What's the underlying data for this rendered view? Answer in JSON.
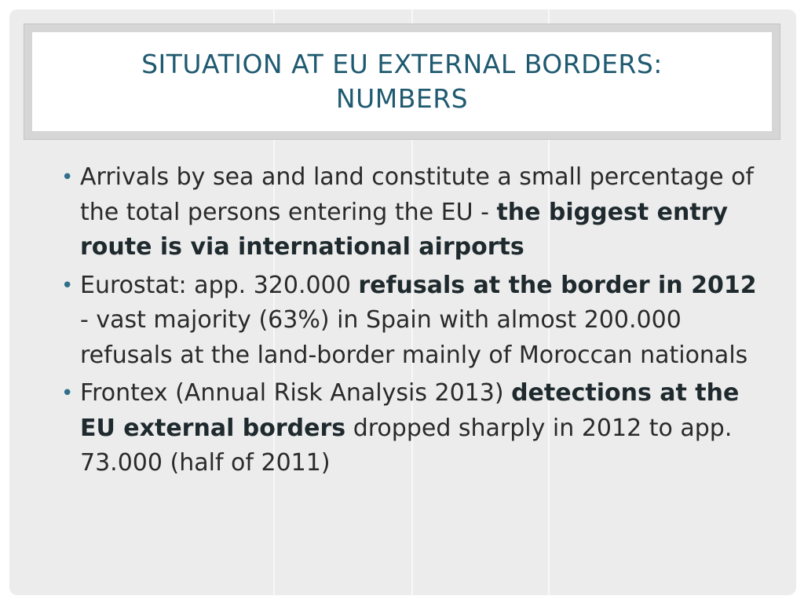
{
  "slide": {
    "title": "SITUATION AT EU EXTERNAL BORDERS:\nNUMBERS",
    "bullets": [
      {
        "parts": [
          {
            "text": "Arrivals by sea and land constitute a small percentage of the total persons entering the EU - ",
            "bold": false
          },
          {
            "text": "the biggest entry route is via international airports",
            "bold": true
          }
        ]
      },
      {
        "parts": [
          {
            "text": "Eurostat: app. 320.000 ",
            "bold": false
          },
          {
            "text": "refusals at the border in 2012",
            "bold": true
          },
          {
            "text": " - vast majority (63%) in Spain with almost 200.000 refusals at the land-border mainly of Moroccan nationals",
            "bold": false
          }
        ]
      },
      {
        "parts": [
          {
            "text": "Frontex (Annual Risk Analysis 2013) ",
            "bold": false
          },
          {
            "text": "detections at the EU external borders",
            "bold": true
          },
          {
            "text": " dropped sharply in 2012 to app. 73.000 (half of 2011)",
            "bold": false
          }
        ]
      }
    ],
    "bullet_glyph": "•"
  },
  "colors": {
    "title": "#1f5a70",
    "bullet": "#2f6f8a",
    "background": "#ececec"
  }
}
